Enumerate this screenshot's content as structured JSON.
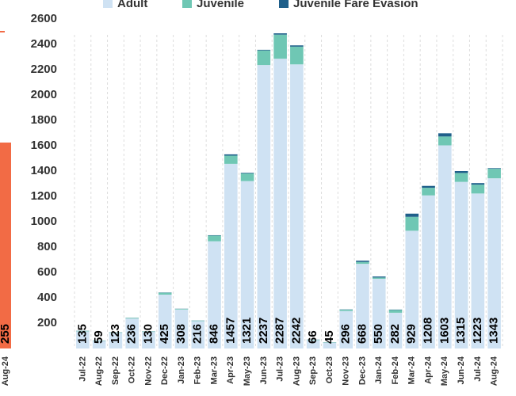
{
  "chart_data": [
    {
      "type": "stacked-bar",
      "categories": [
        "Jul-22",
        "Aug-22",
        "Sep-22",
        "Oct-22",
        "Nov-22",
        "Dec-22",
        "Jan-23",
        "Feb-23",
        "Mar-23",
        "Apr-23",
        "May-23",
        "Jun-23",
        "Jul-23",
        "Aug-23",
        "Sep-23",
        "Oct-23",
        "Nov-23",
        "Dec-23",
        "Jan-24",
        "Feb-24",
        "Mar-24",
        "Apr-24",
        "May-24",
        "Jun-24",
        "Jul-24",
        "Aug-24"
      ],
      "series": [
        {
          "name": "Adult",
          "color": "#cfe2f3",
          "values": [
            135,
            59,
            123,
            236,
            130,
            425,
            308,
            216,
            846,
            1457,
            1321,
            2237,
            2287,
            2242,
            66,
            45,
            296,
            668,
            550,
            282,
            929,
            1208,
            1603,
            1315,
            1223,
            1343
          ]
        },
        {
          "name": "Juvenile",
          "color": "#6fc7b4",
          "values": [
            4,
            3,
            4,
            5,
            4,
            15,
            5,
            4,
            45,
            65,
            60,
            115,
            190,
            140,
            3,
            3,
            10,
            15,
            10,
            22,
            110,
            60,
            70,
            70,
            70,
            75
          ]
        },
        {
          "name": "Juvenile Fare Evasion",
          "color": "#1f5f8a",
          "values": [
            1,
            1,
            1,
            1,
            1,
            2,
            1,
            1,
            3,
            10,
            5,
            5,
            10,
            10,
            1,
            1,
            2,
            10,
            8,
            3,
            25,
            15,
            25,
            15,
            12,
            5
          ]
        }
      ],
      "ylim": [
        0,
        2600
      ],
      "yticks": [
        200,
        400,
        600,
        800,
        1000,
        1200,
        1400,
        1600,
        1800,
        2000,
        2200,
        2400,
        2600
      ]
    },
    {
      "type": "bar-fragment",
      "categories": [
        "Aug-24"
      ],
      "values": [
        255
      ],
      "color": "#f26b45"
    }
  ]
}
